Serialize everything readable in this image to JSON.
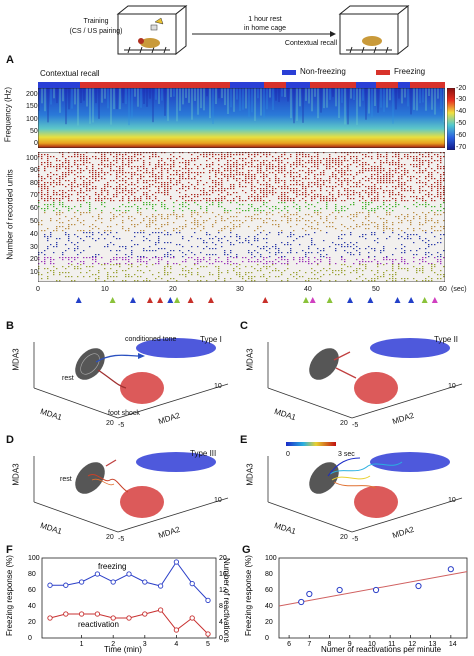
{
  "schematic": {
    "training": "Training",
    "training_sub": "(CS / US pairing)",
    "rest_line1": "1 hour rest",
    "rest_line2": "in home cage",
    "recall": "Contextual recall"
  },
  "panel_labels": {
    "A": "A",
    "B": "B",
    "C": "C",
    "D": "D",
    "E": "E",
    "F": "F",
    "G": "G"
  },
  "panelA": {
    "title": "Contextual recall",
    "legend": [
      {
        "label": "Non-freezing",
        "color": "#2a3fd6"
      },
      {
        "label": "Freezing",
        "color": "#d8322b"
      }
    ],
    "spec_ylabel": "Frequency (Hz)",
    "spec_yticks": [
      "200",
      "150",
      "100",
      "50",
      "0"
    ],
    "colorbar_ticks": [
      "-20",
      "-30",
      "-40",
      "-50",
      "-60",
      "-70"
    ],
    "raster_ylabel": "Number of recorded units",
    "raster_yticks": [
      "100",
      "90",
      "80",
      "70",
      "60",
      "50",
      "40",
      "30",
      "20",
      "10",
      "0"
    ],
    "xticks": [
      "0",
      "10",
      "20",
      "30",
      "40",
      "50",
      "60"
    ],
    "xunit": "(sec)",
    "markers": [
      {
        "t": 6,
        "color": "#2340c8"
      },
      {
        "t": 11,
        "color": "#8ac23a"
      },
      {
        "t": 14,
        "color": "#2340c8"
      },
      {
        "t": 16.5,
        "color": "#c8302a"
      },
      {
        "t": 18,
        "color": "#c8302a"
      },
      {
        "t": 19.5,
        "color": "#2340c8"
      },
      {
        "t": 20.5,
        "color": "#8ac23a"
      },
      {
        "t": 22.5,
        "color": "#c8302a"
      },
      {
        "t": 25.5,
        "color": "#c8302a"
      },
      {
        "t": 33.5,
        "color": "#c8302a"
      },
      {
        "t": 39.5,
        "color": "#8ac23a"
      },
      {
        "t": 40.5,
        "color": "#d040c0"
      },
      {
        "t": 43,
        "color": "#8ac23a"
      },
      {
        "t": 46,
        "color": "#2340c8"
      },
      {
        "t": 49,
        "color": "#2340c8"
      },
      {
        "t": 53,
        "color": "#2340c8"
      },
      {
        "t": 55,
        "color": "#2340c8"
      },
      {
        "t": 57,
        "color": "#8ac23a"
      },
      {
        "t": 58.5,
        "color": "#d040c0"
      }
    ]
  },
  "panelB": {
    "type": "Type I",
    "tone": "conditioned tone",
    "rest": "rest",
    "shock": "foot shock",
    "zlabel": "MDA3",
    "xlabel": "MDA1",
    "ylabel": "MDA2",
    "xticks": [
      "20",
      "-5"
    ],
    "yticks": [
      "-5",
      "10"
    ]
  },
  "panelC": {
    "type": "Type II",
    "zlabel": "MDA3",
    "xlabel": "MDA1",
    "ylabel": "MDA2",
    "xticks": [
      "20",
      "-5"
    ],
    "yticks": [
      "-5",
      "10"
    ]
  },
  "panelD": {
    "type": "Type III",
    "rest": "rest",
    "zlabel": "MDA3",
    "xlabel": "MDA1",
    "ylabel": "MDA2",
    "xticks": [
      "20",
      "-5"
    ],
    "yticks": [
      "-5",
      "10"
    ]
  },
  "panelE": {
    "cbar_start": "0",
    "cbar_end": "3 sec",
    "zlabel": "MDA3",
    "xlabel": "MDA1",
    "ylabel": "MDA2",
    "xticks": [
      "20",
      "-5"
    ],
    "yticks": [
      "-5",
      "10"
    ]
  },
  "chart_data": [
    {
      "type": "line",
      "xlabel": "Time (min)",
      "ylabel": "Freezing response (%)",
      "y2label": "Number of reactivations",
      "x": [
        0,
        0.5,
        1,
        1.5,
        2,
        2.5,
        3,
        3.5,
        4,
        4.5,
        5
      ],
      "xticks": [
        "1",
        "2",
        "3",
        "4",
        "5"
      ],
      "yticks": [
        "100",
        "80",
        "60",
        "40",
        "20",
        "0"
      ],
      "y2ticks": [
        "20",
        "16",
        "12",
        "8",
        "4",
        "0"
      ],
      "ylim": [
        0,
        100
      ],
      "y2lim": [
        0,
        20
      ],
      "series": [
        {
          "name": "freezing",
          "axis": "left",
          "color": "#2b3fc8",
          "values": [
            66,
            66,
            70,
            80,
            70,
            80,
            70,
            65,
            95,
            68,
            47
          ]
        },
        {
          "name": "reactivation",
          "axis": "right",
          "color": "#c83030",
          "values": [
            5,
            6,
            6,
            6,
            5,
            5,
            6,
            7,
            2,
            5,
            1
          ]
        }
      ]
    },
    {
      "type": "scatter",
      "xlabel": "Numer of reactivations per minute",
      "ylabel": "Freezing response (%)",
      "xticks": [
        "6",
        "7",
        "8",
        "9",
        "10",
        "11",
        "12",
        "13",
        "14"
      ],
      "yticks": [
        "100",
        "80",
        "60",
        "40",
        "20",
        "0"
      ],
      "xlim": [
        5.5,
        14.8
      ],
      "ylim": [
        0,
        100
      ],
      "x": [
        6.6,
        7,
        8.5,
        10.3,
        12.4,
        14
      ],
      "y": [
        45,
        55,
        60,
        60,
        65,
        86
      ],
      "fit": {
        "x": [
          5.5,
          14.8
        ],
        "y": [
          40,
          83
        ],
        "color": "#d06060"
      }
    }
  ]
}
